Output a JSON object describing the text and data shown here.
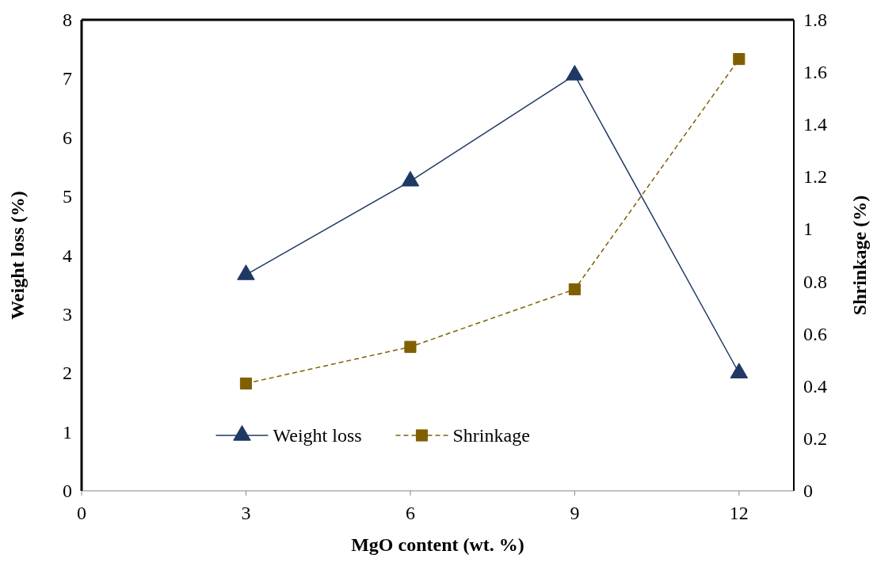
{
  "chart_data": {
    "type": "line",
    "xlabel": "MgO content (wt. %)",
    "ylabel": "Weight loss (%)",
    "y2label": "Shrinkage (%)",
    "x": [
      3,
      6,
      9,
      12
    ],
    "xlim": [
      0,
      13
    ],
    "xticks": [
      0,
      3,
      6,
      9,
      12
    ],
    "ylim": [
      0,
      8
    ],
    "yticks": [
      0,
      1,
      2,
      3,
      4,
      5,
      6,
      7,
      8
    ],
    "y2lim": [
      0,
      1.8
    ],
    "y2ticks": [
      0,
      0.2,
      0.4,
      0.6,
      0.8,
      1,
      1.2,
      1.4,
      1.6,
      1.8
    ],
    "series": [
      {
        "name": "Weight loss",
        "color": "#1f3864",
        "values": [
          3.67,
          5.26,
          7.06,
          2.0
        ],
        "marker": "triangle",
        "line_style": "solid"
      },
      {
        "name": "Shrinkage",
        "color": "#7f6000",
        "values": [
          0.41,
          0.55,
          0.77,
          1.65
        ],
        "marker": "square",
        "line_style": "dashed",
        "axis": "y2"
      }
    ],
    "legend": "bottom",
    "grid": false
  }
}
